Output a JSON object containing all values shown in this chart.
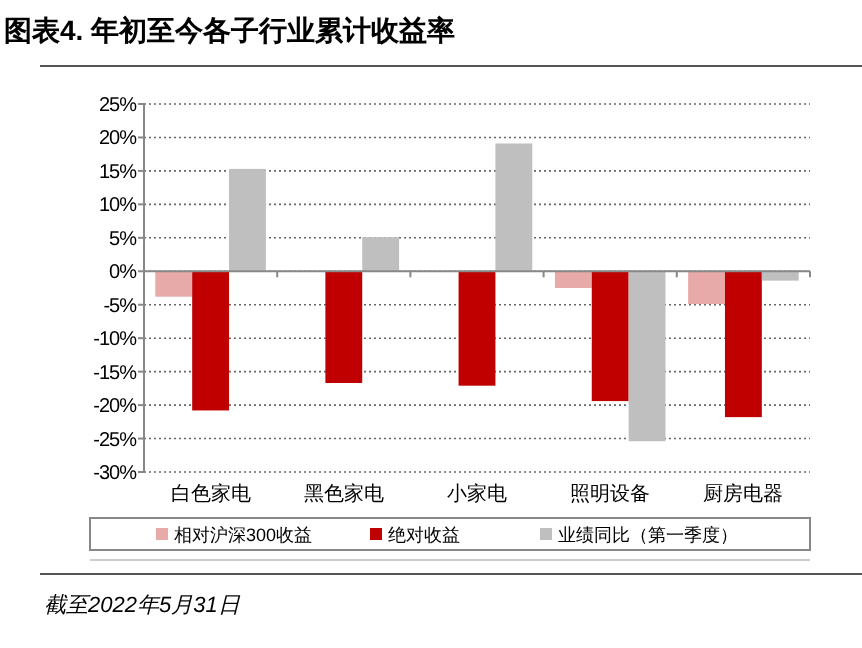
{
  "chart_data": {
    "type": "bar",
    "title": "图表4. 年初至今各子行业累计收益率",
    "categories": [
      "白色家电",
      "黑色家电",
      "小家电",
      "照明设备",
      "厨房电器"
    ],
    "series": [
      {
        "name": "相对沪深300收益",
        "color": "#e8a9a9",
        "values": [
          -3.8,
          null,
          null,
          -2.5,
          -4.9
        ]
      },
      {
        "name": "绝对收益",
        "color": "#c00000",
        "values": [
          -20.8,
          -16.7,
          -17.1,
          -19.4,
          -21.8
        ]
      },
      {
        "name": "业绩同比（第一季度）",
        "color": "#bfbfbf",
        "values": [
          15.3,
          5.1,
          19.1,
          -25.4,
          -1.4
        ]
      }
    ],
    "ylim": [
      -30,
      25
    ],
    "yticks": [
      {
        "value": -30,
        "label": "-30%"
      },
      {
        "value": -25,
        "label": "-25%"
      },
      {
        "value": -20,
        "label": "-20%"
      },
      {
        "value": -15,
        "label": "-15%"
      },
      {
        "value": -10,
        "label": "-10%"
      },
      {
        "value": -5,
        "label": "-5%"
      },
      {
        "value": 0,
        "label": "0%"
      },
      {
        "value": 5,
        "label": "5%"
      },
      {
        "value": 10,
        "label": "10%"
      },
      {
        "value": 15,
        "label": "15%"
      },
      {
        "value": 20,
        "label": "20%"
      },
      {
        "value": 25,
        "label": "25%"
      }
    ],
    "grid": "y",
    "legend": "bottom",
    "annotations": [
      "截至2022年5月31日"
    ]
  }
}
